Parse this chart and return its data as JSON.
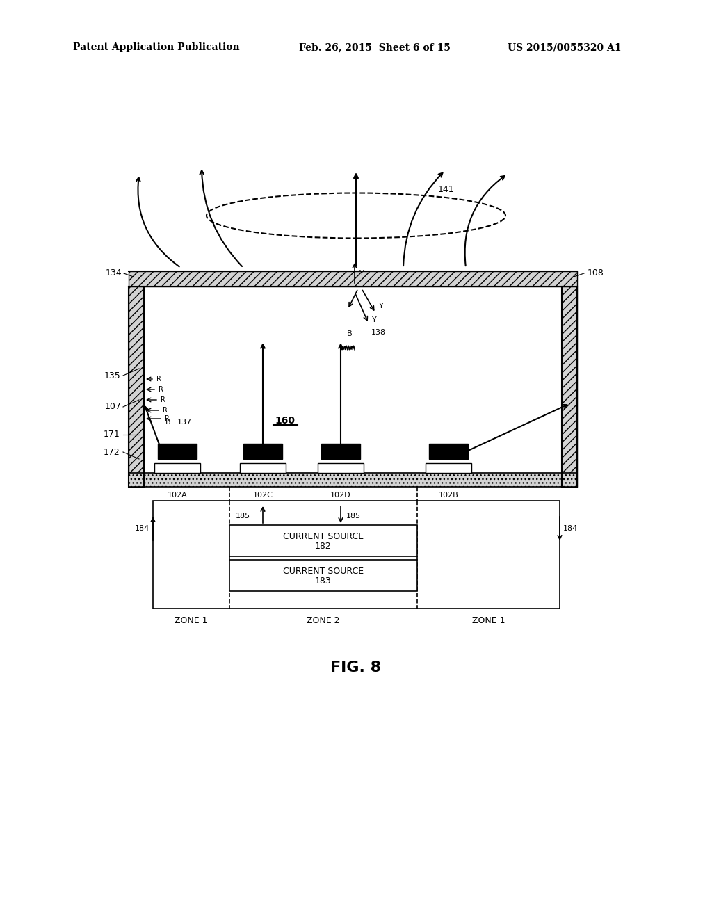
{
  "bg_color": "#ffffff",
  "header_left": "Patent Application Publication",
  "header_mid": "Feb. 26, 2015  Sheet 6 of 15",
  "header_right": "US 2015/0055320 A1",
  "fig_label": "FIG. 8",
  "title_fontsize": 11,
  "body_fontsize": 9,
  "label_fontsize": 9
}
